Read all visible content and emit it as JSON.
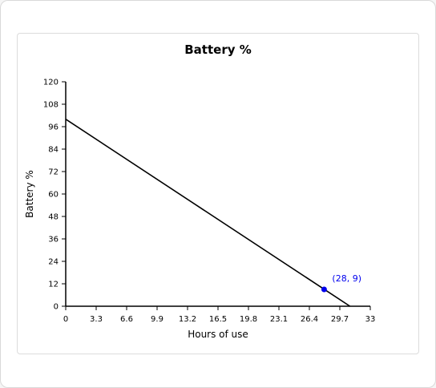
{
  "chart_data": {
    "type": "line",
    "title": "Battery %",
    "xlabel": "Hours of use",
    "ylabel": "Battery %",
    "xlim": [
      0,
      33
    ],
    "ylim": [
      0,
      120
    ],
    "x_ticks": [
      "0",
      "3.3",
      "6.6",
      "9.9",
      "13.2",
      "16.5",
      "19.8",
      "23.1",
      "26.4",
      "29.7",
      "33"
    ],
    "y_ticks": [
      "0",
      "12",
      "24",
      "36",
      "48",
      "60",
      "72",
      "84",
      "96",
      "108",
      "120"
    ],
    "grid": false,
    "series": [
      {
        "x": [
          0,
          30.8
        ],
        "y": [
          100,
          0
        ],
        "color": "#000000"
      }
    ],
    "highlight_point": {
      "x": 28,
      "y": 9,
      "label": "(28, 9)",
      "color": "#0000ee"
    }
  }
}
